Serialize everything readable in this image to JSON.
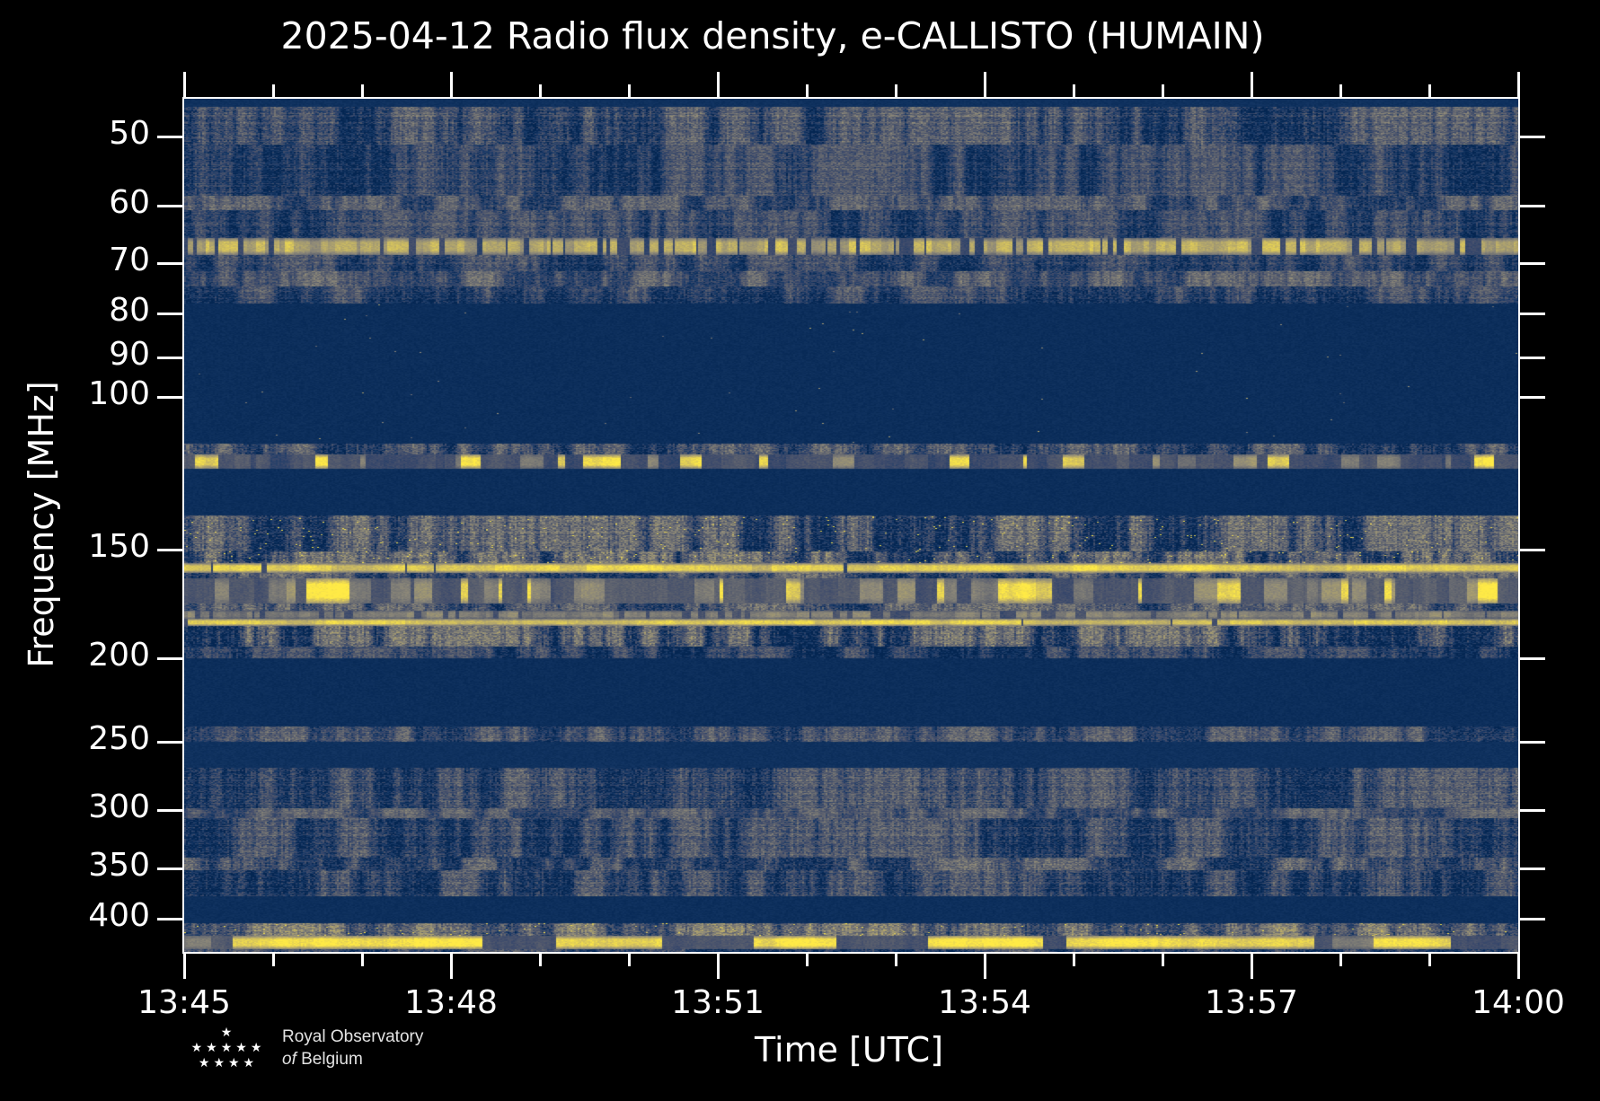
{
  "title": "2025-04-12 Radio flux density, e-CALLISTO (HUMAIN)",
  "axes": {
    "x_label": "Time [UTC]",
    "y_label": "Frequency [MHz]"
  },
  "logo": {
    "line1": "Royal Observatory",
    "line2_italic": "of",
    "line2_rest": " Belgium",
    "star_rows": [
      "★",
      "★★★★★",
      "★★★★"
    ]
  },
  "chart_data": {
    "type": "heatmap",
    "title": "2025-04-12 Radio flux density, e-CALLISTO (HUMAIN)",
    "xlabel": "Time [UTC]",
    "ylabel": "Frequency [MHz]",
    "x_start": "13:45",
    "x_end": "14:00",
    "x_major_ticks": [
      "13:45",
      "13:48",
      "13:51",
      "13:54",
      "13:57",
      "14:00"
    ],
    "x_total_minutes": 15,
    "x_major_step_minutes": 3,
    "x_minor_step_minutes": 1,
    "y_scale": "log",
    "y_min_mhz": 45.2,
    "y_max_mhz": 437,
    "y_ticks_mhz": [
      "50",
      "60",
      "70",
      "80",
      "90",
      "100",
      "150",
      "200",
      "250",
      "300",
      "350",
      "400"
    ],
    "grid": false,
    "legend": "none",
    "colormap": {
      "name": "cividis-like",
      "stops": [
        [
          0.0,
          "#00224e"
        ],
        [
          0.12,
          "#173967"
        ],
        [
          0.25,
          "#3b496b"
        ],
        [
          0.38,
          "#575d6d"
        ],
        [
          0.5,
          "#707173"
        ],
        [
          0.62,
          "#8b8779"
        ],
        [
          0.75,
          "#aba06f"
        ],
        [
          0.87,
          "#d2c05f"
        ],
        [
          1.0,
          "#ffea46"
        ]
      ]
    },
    "bands": [
      {
        "f0": 45.2,
        "f1": 46.2,
        "kind": "quiet",
        "level": 0.08
      },
      {
        "f0": 46.2,
        "f1": 51.0,
        "kind": "noise",
        "level": 0.26,
        "col": 0.2,
        "row": 0.08,
        "cell": 0.16
      },
      {
        "f0": 51.0,
        "f1": 58.5,
        "kind": "noise",
        "level": 0.22,
        "col": 0.16,
        "row": 0.06,
        "cell": 0.14
      },
      {
        "f0": 58.5,
        "f1": 60.8,
        "kind": "noise",
        "level": 0.31,
        "col": 0.18,
        "row": 0.05,
        "cell": 0.14
      },
      {
        "f0": 60.8,
        "f1": 65.5,
        "kind": "noise",
        "level": 0.22,
        "col": 0.16,
        "row": 0.06,
        "cell": 0.14
      },
      {
        "f0": 65.5,
        "f1": 68.5,
        "kind": "dashes",
        "level": 0.78,
        "bg": 0.24,
        "spk": 0.02
      },
      {
        "f0": 68.5,
        "f1": 71.5,
        "kind": "noise",
        "level": 0.24,
        "col": 0.16,
        "row": 0.05,
        "cell": 0.14
      },
      {
        "f0": 71.5,
        "f1": 74.5,
        "kind": "noise",
        "level": 0.34,
        "col": 0.18,
        "row": 0.04,
        "cell": 0.13
      },
      {
        "f0": 74.5,
        "f1": 78.0,
        "kind": "noise",
        "level": 0.23,
        "col": 0.16,
        "row": 0.05,
        "cell": 0.14
      },
      {
        "f0": 78.0,
        "f1": 113.0,
        "kind": "quiet",
        "level": 0.065,
        "spk": 0.0006
      },
      {
        "f0": 113.0,
        "f1": 116.5,
        "kind": "noise",
        "level": 0.26,
        "col": 0.22,
        "row": 0.05,
        "cell": 0.16
      },
      {
        "f0": 116.5,
        "f1": 121.0,
        "kind": "blobs",
        "level": 0.3,
        "p_tan": 0.18,
        "p_yellow": 0.1
      },
      {
        "f0": 121.0,
        "f1": 137.0,
        "kind": "quiet",
        "level": 0.065
      },
      {
        "f0": 137.0,
        "f1": 150.5,
        "kind": "noise",
        "level": 0.29,
        "col": 0.24,
        "row": 0.06,
        "cell": 0.18,
        "spk": 0.008
      },
      {
        "f0": 150.5,
        "f1": 155.5,
        "kind": "noise",
        "level": 0.33,
        "col": 0.26,
        "row": 0.05,
        "cell": 0.19,
        "spk": 0.012
      },
      {
        "f0": 155.5,
        "f1": 159.5,
        "kind": "line",
        "level": 0.94,
        "bg": 0.25
      },
      {
        "f0": 159.5,
        "f1": 162.0,
        "kind": "noise",
        "level": 0.3,
        "col": 0.22,
        "row": 0.04,
        "cell": 0.16
      },
      {
        "f0": 162.0,
        "f1": 173.0,
        "kind": "blobs",
        "level": 0.36,
        "p_tan": 0.3,
        "p_yellow": 0.16
      },
      {
        "f0": 173.0,
        "f1": 176.5,
        "kind": "noise",
        "level": 0.3,
        "col": 0.22,
        "row": 0.04,
        "cell": 0.16
      },
      {
        "f0": 176.5,
        "f1": 180.0,
        "kind": "dashes",
        "level": 0.58,
        "bg": 0.3,
        "spk": 0.01
      },
      {
        "f0": 180.0,
        "f1": 183.5,
        "kind": "line",
        "level": 0.92,
        "bg": 0.28
      },
      {
        "f0": 183.5,
        "f1": 194.0,
        "kind": "noise",
        "level": 0.28,
        "col": 0.28,
        "row": 0.06,
        "cell": 0.18
      },
      {
        "f0": 194.0,
        "f1": 200.0,
        "kind": "noise",
        "level": 0.2,
        "col": 0.18,
        "row": 0.05,
        "cell": 0.14
      },
      {
        "f0": 200.0,
        "f1": 240.0,
        "kind": "quiet",
        "level": 0.065
      },
      {
        "f0": 240.0,
        "f1": 250.0,
        "kind": "noise",
        "level": 0.3,
        "col": 0.18,
        "row": 0.04,
        "cell": 0.14
      },
      {
        "f0": 250.0,
        "f1": 268.0,
        "kind": "quiet",
        "level": 0.08
      },
      {
        "f0": 268.0,
        "f1": 298.0,
        "kind": "noise",
        "level": 0.24,
        "col": 0.18,
        "row": 0.07,
        "cell": 0.16
      },
      {
        "f0": 298.0,
        "f1": 306.0,
        "kind": "noise",
        "level": 0.33,
        "col": 0.16,
        "row": 0.04,
        "cell": 0.12
      },
      {
        "f0": 306.0,
        "f1": 340.0,
        "kind": "noise",
        "level": 0.24,
        "col": 0.18,
        "row": 0.07,
        "cell": 0.16
      },
      {
        "f0": 340.0,
        "f1": 352.0,
        "kind": "noise",
        "level": 0.3,
        "col": 0.2,
        "row": 0.05,
        "cell": 0.16
      },
      {
        "f0": 352.0,
        "f1": 377.0,
        "kind": "noise",
        "level": 0.23,
        "col": 0.18,
        "row": 0.06,
        "cell": 0.16
      },
      {
        "f0": 377.0,
        "f1": 405.0,
        "kind": "quiet",
        "level": 0.07
      },
      {
        "f0": 405.0,
        "f1": 419.0,
        "kind": "noise",
        "level": 0.42,
        "col": 0.22,
        "row": 0.05,
        "cell": 0.18,
        "spk": 0.01
      },
      {
        "f0": 419.0,
        "f1": 434.0,
        "kind": "bigblobs",
        "level": 0.32,
        "bg": 0.3
      },
      {
        "f0": 434.0,
        "f1": 437.0,
        "kind": "noise",
        "level": 0.22,
        "col": 0.18,
        "row": 0.04,
        "cell": 0.14
      }
    ]
  }
}
